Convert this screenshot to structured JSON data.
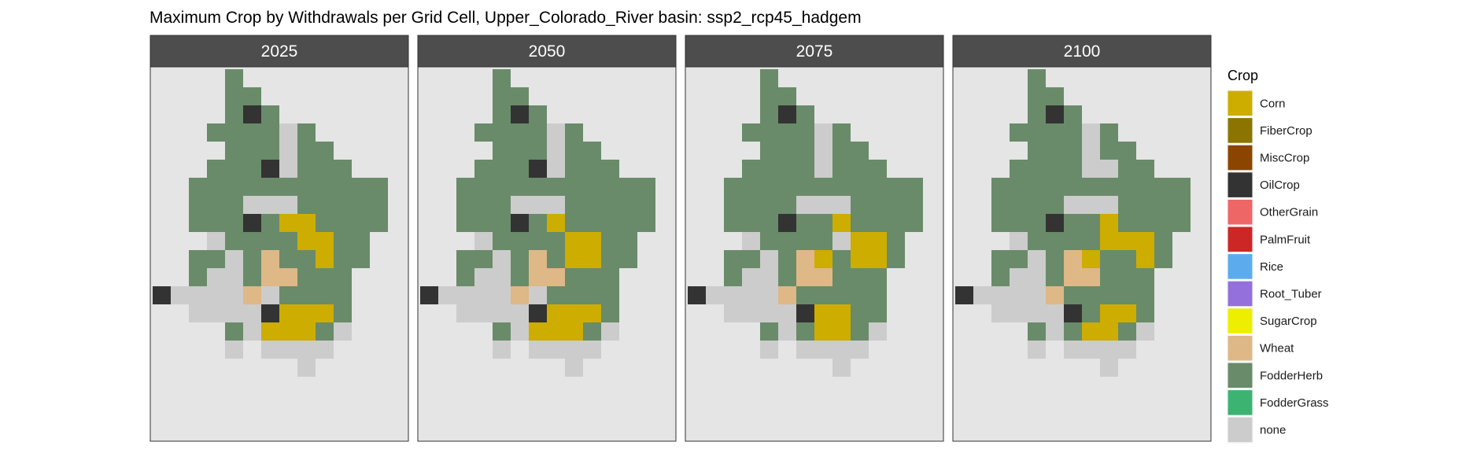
{
  "chart_data": {
    "type": "heatmap",
    "title": "Maximum Crop by Withdrawals per Grid Cell, Upper_Colorado_River basin: ssp2_rcp45_hadgem",
    "facets": [
      "2025",
      "2050",
      "2075",
      "2100"
    ],
    "legend_title": "Crop",
    "legend_position": "right",
    "background_color": "#e5e5e5",
    "strip_color": "#4d4d4d",
    "categories": [
      {
        "code": "C",
        "name": "Corn",
        "color": "#ccad00"
      },
      {
        "code": "F",
        "name": "FiberCrop",
        "color": "#8b7500"
      },
      {
        "code": "M",
        "name": "MiscCrop",
        "color": "#8b4500"
      },
      {
        "code": "O",
        "name": "OilCrop",
        "color": "#333333"
      },
      {
        "code": "G",
        "name": "OtherGrain",
        "color": "#ef6666"
      },
      {
        "code": "P",
        "name": "PalmFruit",
        "color": "#cd2626"
      },
      {
        "code": "R",
        "name": "Rice",
        "color": "#5caced"
      },
      {
        "code": "T",
        "name": "Root_Tuber",
        "color": "#9370db"
      },
      {
        "code": "S",
        "name": "SugarCrop",
        "color": "#eeee00"
      },
      {
        "code": "W",
        "name": "Wheat",
        "color": "#deb887"
      },
      {
        "code": "H",
        "name": "FodderHerb",
        "color": "#698b69"
      },
      {
        "code": "D",
        "name": "FodderGrass",
        "color": "#3cb371"
      },
      {
        "code": "N",
        "name": "none",
        "color": "#cccccc"
      }
    ],
    "grids": [
      [
        "....H.........",
        "....HH........",
        "....HOH.......",
        "...HHHHNH.....",
        "....HHHNHH....",
        "...HHHONHHH...",
        "..HHHHHHHHHHH.",
        "..HHHNNNHHHHH.",
        "..HHHOHCCHHHH.",
        "...NHHHHCCHH..",
        "..HHNHWHHCHH..",
        "..HNNHWWHHH...",
        "ONNNNWNHHHH...",
        "..NNNNOCCCH...",
        "....HNCCCHN...",
        "....N.NNNN....",
        "........N....."
      ],
      [
        "....H.........",
        "....HH........",
        "....HOH.......",
        "...HHHHNH.....",
        "....HHHNHH....",
        "...HHHONHHH...",
        "..HHHHHHHHHHH.",
        "..HHHNNNHHHHH.",
        "..HHHOHCHHHHH.",
        "...NHHHHCCHH..",
        "..HHNHWHCCHH..",
        "..HNNHWWHHH...",
        "ONNNNWNHHHH...",
        "..NNNNOCCCH...",
        "....HNCCCHN...",
        "....N.NNNN....",
        "........N....."
      ],
      [
        "....H.........",
        "....HH........",
        "....HOH.......",
        "...HHHHNH.....",
        "....HHHNHH....",
        "...HHHHNHHH...",
        "..HHHHHHHHHHH.",
        "..HHHHNNNHHHH.",
        "..HHHOHHCHHHH.",
        "...NHHHHNCCH..",
        "..HHNHWCHCCH..",
        "..HNNHWWHHH...",
        "ONNNNWHHHHH...",
        "..NNNNOCCHH...",
        "....HNHCCHN...",
        "....N.NNNN....",
        "........N....."
      ],
      [
        "....H.........",
        "....HH........",
        "....HOH.......",
        "...HHHHNH.....",
        "....HHHNHH....",
        "...HHHHNNHH...",
        "..HHHHHHHHHHH.",
        "..HHHHNNNHHHH.",
        "..HHHOHHCHHHH.",
        "...NHHHHCCCH..",
        "..HHNHWCHHCH..",
        "..HNNHWWHHH...",
        "ONNNNWHHHHH...",
        "..NNNNOHCCH...",
        "....HNHCCHN...",
        "....N.NNNN....",
        "........N....."
      ]
    ]
  }
}
